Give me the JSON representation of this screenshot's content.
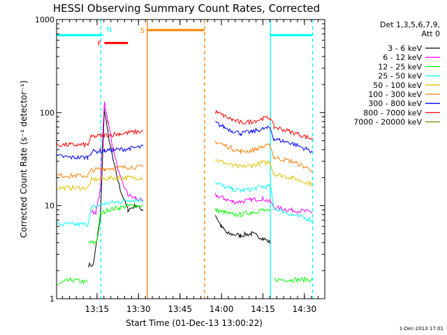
{
  "chart_data": {
    "type": "line",
    "title": "HESSI Observing Summary Count Rates, Corrected",
    "xlabel": "Start Time (01-Dec-13 13:00:22)",
    "ylabel": "Corrected Count Rate (s⁻¹ detector⁻¹)",
    "yscale": "log",
    "ylim": [
      1,
      1000
    ],
    "xlim_minutes": [
      0,
      97
    ],
    "x_unit": "minutes after 13:00:22",
    "y_ticks": [
      "1",
      "10",
      "100",
      "1000"
    ],
    "x_ticks": [
      {
        "label": "13:15",
        "minute": 14.63
      },
      {
        "label": "13:30",
        "minute": 29.63
      },
      {
        "label": "13:45",
        "minute": 44.63
      },
      {
        "label": "14:00",
        "minute": 59.63
      },
      {
        "label": "14:15",
        "minute": 74.63
      },
      {
        "label": "14:30",
        "minute": 89.63
      }
    ],
    "legend": {
      "header_line1": "Det 1,3,5,6,7,9,",
      "header_line2": "Att 0",
      "placement": "right"
    },
    "series": [
      {
        "name": "3 - 6 keV",
        "color": "#000000",
        "segments": [
          [
            [
              11.5,
              2.3
            ],
            [
              13.2,
              2.3
            ],
            [
              15.8,
              7
            ],
            [
              17.3,
              110
            ],
            [
              18.6,
              60
            ],
            [
              20.5,
              30
            ],
            [
              23,
              15
            ],
            [
              25.8,
              9
            ],
            [
              28.6,
              10
            ],
            [
              31.3,
              9
            ]
          ],
          [
            [
              57.4,
              8
            ],
            [
              59.5,
              6
            ],
            [
              61.8,
              5
            ],
            [
              66.5,
              4.8
            ],
            [
              70.5,
              5
            ],
            [
              74.5,
              4.5
            ],
            [
              77.3,
              4
            ]
          ]
        ]
      },
      {
        "name": "6 - 12 keV",
        "color": "#ff00ff",
        "segments": [
          [
            [
              12.6,
              8.5
            ],
            [
              14.3,
              8.5
            ],
            [
              15.8,
              15
            ],
            [
              17.3,
              135
            ],
            [
              18.6,
              80
            ],
            [
              20.5,
              40
            ],
            [
              23,
              20
            ],
            [
              25.8,
              13
            ],
            [
              28.6,
              12
            ],
            [
              31.3,
              11
            ]
          ],
          [
            [
              57.4,
              13
            ],
            [
              60.5,
              12
            ],
            [
              63.5,
              11
            ],
            [
              66.5,
              11
            ],
            [
              70.5,
              11.5
            ],
            [
              74.5,
              12
            ],
            [
              77.3,
              11
            ],
            [
              78.6,
              9.5
            ],
            [
              85,
              9
            ],
            [
              92.6,
              8.5
            ]
          ]
        ]
      },
      {
        "name": "12 - 25 keV",
        "color": "#00ff00",
        "segments": [
          [
            [
              0,
              1.4
            ],
            [
              5,
              1.6
            ],
            [
              11.3,
              1.5
            ]
          ],
          [
            [
              11.5,
              4
            ],
            [
              14.3,
              4
            ],
            [
              15.8,
              8
            ],
            [
              18.6,
              9
            ],
            [
              22.5,
              9.5
            ],
            [
              26.5,
              10
            ],
            [
              31.3,
              10
            ]
          ],
          [
            [
              57.4,
              9
            ],
            [
              60.5,
              8.5
            ],
            [
              63.5,
              8
            ],
            [
              66.5,
              8
            ],
            [
              70.5,
              8.5
            ],
            [
              74.5,
              9
            ],
            [
              77.3,
              8.5
            ]
          ],
          [
            [
              78.6,
              1.6
            ],
            [
              85,
              1.6
            ],
            [
              92.6,
              1.6
            ]
          ]
        ]
      },
      {
        "name": "25 - 50 keV",
        "color": "#00ffff",
        "segments": [
          [
            [
              0,
              6.3
            ],
            [
              5,
              6.3
            ],
            [
              11.3,
              6.3
            ],
            [
              12.6,
              9.5
            ],
            [
              17.3,
              10.5
            ],
            [
              22.5,
              11
            ],
            [
              26.5,
              11.5
            ],
            [
              31.3,
              11.5
            ]
          ],
          [
            [
              57.4,
              18
            ],
            [
              60.5,
              16
            ],
            [
              63.5,
              15
            ],
            [
              66.5,
              14.5
            ],
            [
              70.5,
              15
            ],
            [
              74.5,
              16
            ],
            [
              77.3,
              16
            ],
            [
              78.6,
              9.5
            ],
            [
              85,
              8
            ],
            [
              92.6,
              7
            ]
          ]
        ]
      },
      {
        "name": "50 - 100 keV",
        "color": "#e0c000",
        "segments": [
          [
            [
              0,
              15.5
            ],
            [
              5,
              15.5
            ],
            [
              11.3,
              15.5
            ],
            [
              12.6,
              19
            ],
            [
              17.3,
              19.5
            ],
            [
              22.5,
              20
            ],
            [
              26.5,
              20
            ],
            [
              31.3,
              20
            ]
          ],
          [
            [
              57.4,
              31
            ],
            [
              60.5,
              29
            ],
            [
              63.5,
              27
            ],
            [
              66.5,
              26
            ],
            [
              70.5,
              27
            ],
            [
              74.5,
              29
            ],
            [
              77.3,
              29
            ],
            [
              78.6,
              22
            ],
            [
              85,
              20
            ],
            [
              92.6,
              17
            ]
          ]
        ]
      },
      {
        "name": "100 - 300 keV",
        "color": "#ff8000",
        "segments": [
          [
            [
              0,
              21
            ],
            [
              5,
              21
            ],
            [
              11.3,
              21
            ],
            [
              12.6,
              24
            ],
            [
              17.3,
              25
            ],
            [
              22.5,
              25.5
            ],
            [
              26.5,
              26
            ],
            [
              31.3,
              26
            ]
          ],
          [
            [
              57.4,
              49
            ],
            [
              60.5,
              45
            ],
            [
              63.5,
              41
            ],
            [
              66.5,
              38
            ],
            [
              70.5,
              39
            ],
            [
              74.5,
              43
            ],
            [
              77.3,
              44
            ],
            [
              78.6,
              33
            ],
            [
              85,
              30
            ],
            [
              92.6,
              24
            ]
          ]
        ]
      },
      {
        "name": "300 - 800 keV",
        "color": "#0000ff",
        "segments": [
          [
            [
              0,
              34
            ],
            [
              5,
              33
            ],
            [
              11.3,
              33
            ],
            [
              12.6,
              38
            ],
            [
              17.3,
              39
            ],
            [
              22.5,
              40
            ],
            [
              26.5,
              41
            ],
            [
              31.3,
              43
            ]
          ],
          [
            [
              57.4,
              78
            ],
            [
              60.5,
              70
            ],
            [
              63.5,
              64
            ],
            [
              66.5,
              60
            ],
            [
              70.5,
              62
            ],
            [
              74.5,
              67
            ],
            [
              77.3,
              68
            ],
            [
              78.6,
              52
            ],
            [
              85,
              47
            ],
            [
              92.6,
              38
            ]
          ]
        ]
      },
      {
        "name": "800 - 7000 keV",
        "color": "#ff0000",
        "segments": [
          [
            [
              0,
              45
            ],
            [
              5,
              45
            ],
            [
              11.3,
              45
            ],
            [
              12.6,
              55
            ],
            [
              17.3,
              57
            ],
            [
              22.5,
              59
            ],
            [
              26.5,
              61
            ],
            [
              31.3,
              63
            ]
          ],
          [
            [
              57.4,
              102
            ],
            [
              60.5,
              92
            ],
            [
              63.5,
              84
            ],
            [
              66.5,
              78
            ],
            [
              70.5,
              80
            ],
            [
              74.5,
              86
            ],
            [
              77.3,
              88
            ],
            [
              78.6,
              70
            ],
            [
              85,
              62
            ],
            [
              92.6,
              52
            ]
          ]
        ]
      },
      {
        "name": "7000 - 20000 keV",
        "color": "#808000",
        "segments": []
      }
    ],
    "flag_bars": [
      {
        "label": "",
        "color": "#00ffff",
        "x": [
          0,
          16.5
        ],
        "y": 680
      },
      {
        "label": "N",
        "color": "#00ffff",
        "x": [
          16.8,
          17.0
        ],
        "y": 680
      },
      {
        "label": "",
        "color": "#00ffff",
        "x": [
          77.3,
          92.6
        ],
        "y": 680
      },
      {
        "label": "F",
        "color": "#ff0000",
        "x": [
          17.3,
          25.8
        ],
        "y": 560
      },
      {
        "label": "S",
        "color": "#ff8000",
        "x": [
          32.8,
          53.5
        ],
        "y": 770
      }
    ],
    "vlines": [
      {
        "minute": 16.0,
        "color": "#00ffff",
        "style": "dashed"
      },
      {
        "minute": 32.8,
        "color": "#ff8000",
        "style": "solid"
      },
      {
        "minute": 53.5,
        "color": "#ff8000",
        "style": "dashed"
      },
      {
        "minute": 77.3,
        "color": "#00ffff",
        "style": "solid"
      },
      {
        "minute": 92.6,
        "color": "#00ffff",
        "style": "dashed"
      }
    ],
    "grid": false
  },
  "footer": {
    "timestamp": "1-Dec-2013 17:01"
  }
}
